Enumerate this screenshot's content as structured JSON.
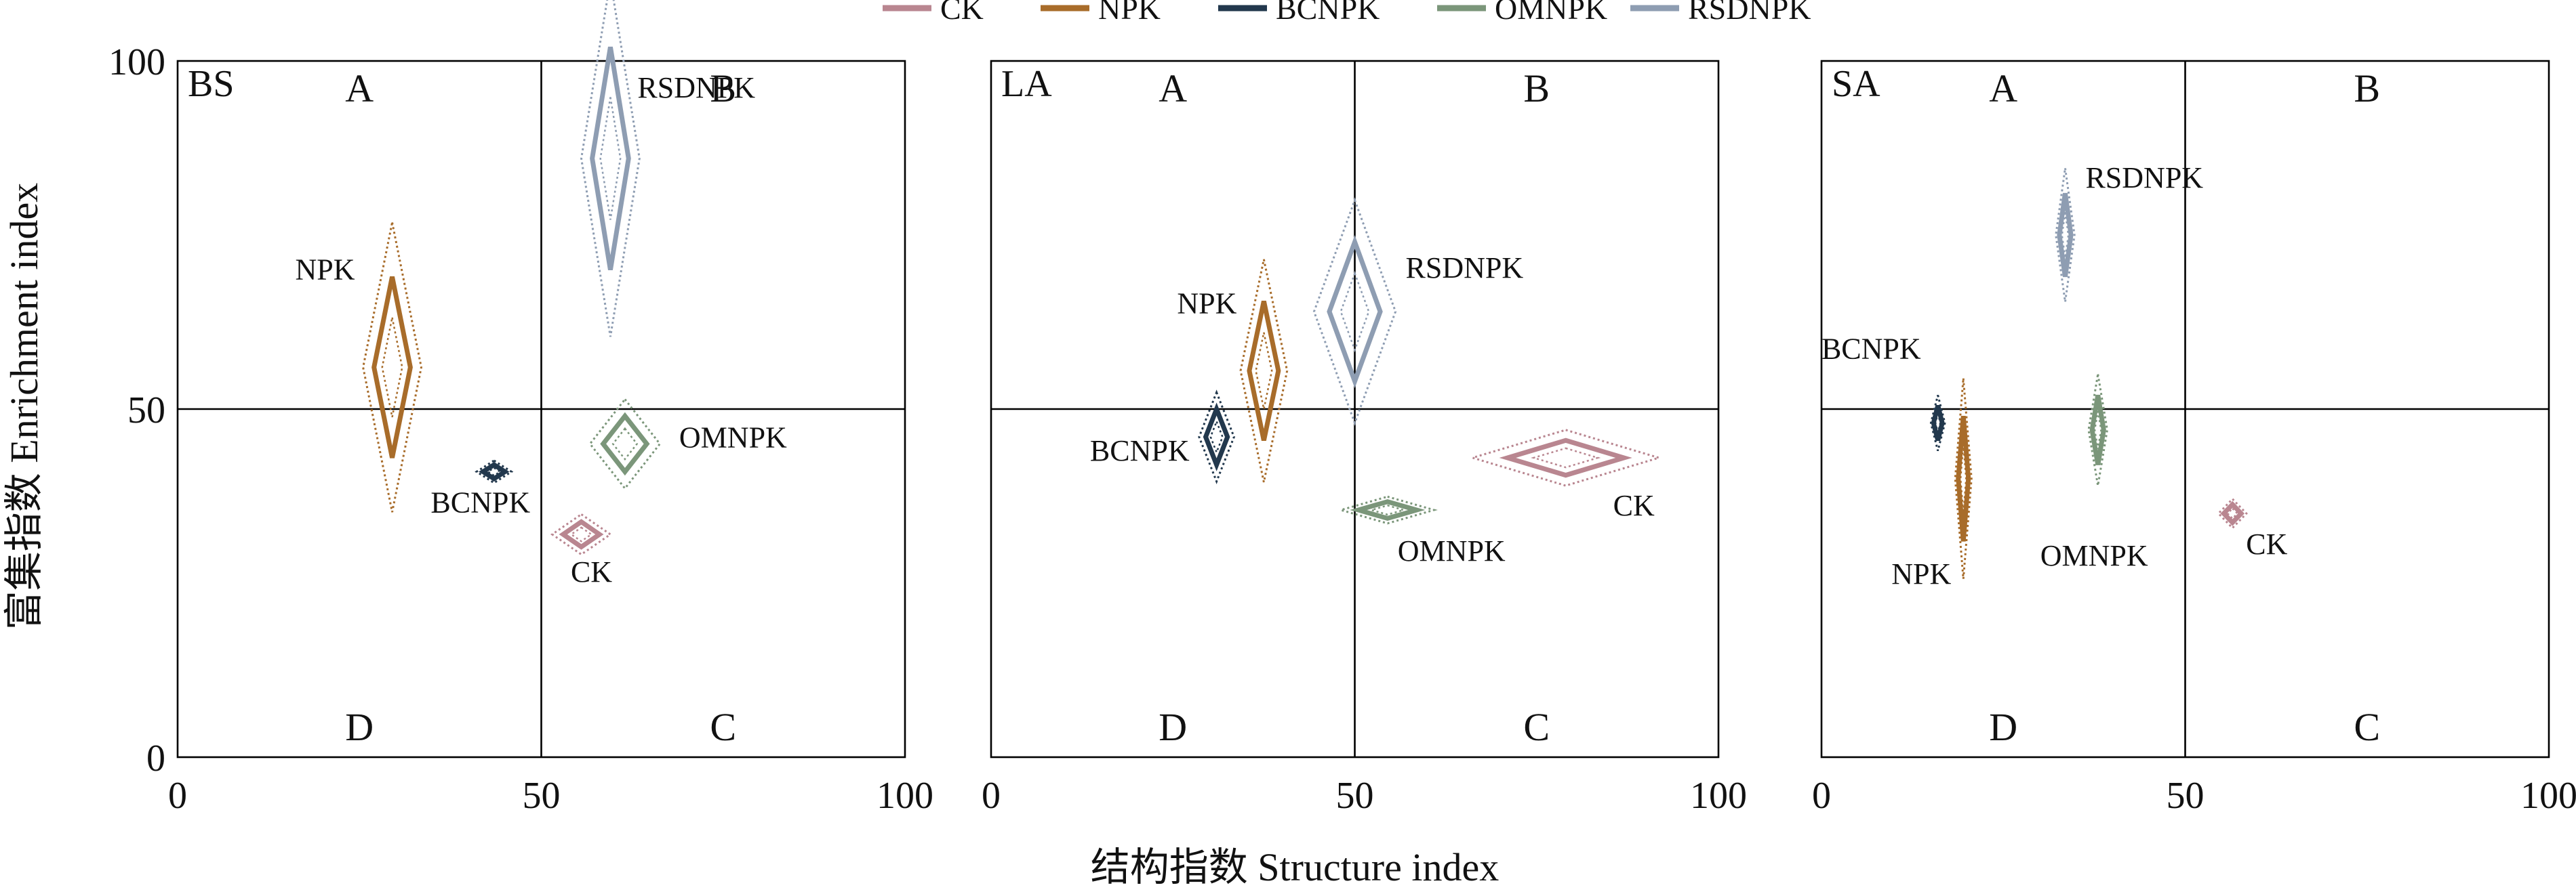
{
  "chart_data": {
    "type": "scatter",
    "xlabel": "结构指数 Structure index",
    "ylabel": "富集指数 Enrichment index",
    "xlim": [
      0,
      100
    ],
    "ylim": [
      0,
      100
    ],
    "x_ticks": [
      "0",
      "50",
      "100"
    ],
    "y_ticks": [
      "0",
      "50",
      "100"
    ],
    "quadrant_labels": [
      "A",
      "B",
      "C",
      "D"
    ],
    "legend_position": "top-center",
    "series": [
      {
        "name": "CK",
        "color": "#b98690"
      },
      {
        "name": "NPK",
        "color": "#a86c2a"
      },
      {
        "name": "BCNPK",
        "color": "#22384d"
      },
      {
        "name": "OMNPK",
        "color": "#7b967a"
      },
      {
        "name": "RSDNPK",
        "color": "#8e9db2"
      }
    ],
    "panels": [
      {
        "name": "BS",
        "points": [
          {
            "series": "CK",
            "label": "CK",
            "x": 55.5,
            "y": 32,
            "sx": 2.5,
            "sy": 1.8
          },
          {
            "series": "NPK",
            "label": "NPK",
            "x": 29.5,
            "y": 56,
            "sx": 2.5,
            "sy": 13
          },
          {
            "series": "BCNPK",
            "label": "BCNPK",
            "x": 43.5,
            "y": 41,
            "sx": 1.5,
            "sy": 1.0
          },
          {
            "series": "OMNPK",
            "label": "OMNPK",
            "x": 61.5,
            "y": 45,
            "sx": 3.0,
            "sy": 4.0
          },
          {
            "series": "RSDNPK",
            "label": "RSDNPK",
            "x": 59.5,
            "y": 86,
            "sx": 2.5,
            "sy": 16
          }
        ]
      },
      {
        "name": "LA",
        "points": [
          {
            "series": "CK",
            "label": "CK",
            "x": 79,
            "y": 43,
            "sx": 8.0,
            "sy": 2.5
          },
          {
            "series": "NPK",
            "label": "NPK",
            "x": 37.5,
            "y": 55.5,
            "sx": 2.0,
            "sy": 10
          },
          {
            "series": "BCNPK",
            "label": "BCNPK",
            "x": 31,
            "y": 46,
            "sx": 1.5,
            "sy": 4.0
          },
          {
            "series": "OMNPK",
            "label": "OMNPK",
            "x": 54.5,
            "y": 35.5,
            "sx": 4.0,
            "sy": 1.2
          },
          {
            "series": "RSDNPK",
            "label": "RSDNPK",
            "x": 50,
            "y": 64,
            "sx": 3.5,
            "sy": 10
          }
        ]
      },
      {
        "name": "SA",
        "points": [
          {
            "series": "CK",
            "label": "CK",
            "x": 56.5,
            "y": 35,
            "sx": 1.2,
            "sy": 1.3
          },
          {
            "series": "NPK",
            "label": "NPK",
            "x": 19.5,
            "y": 40,
            "sx": 0.7,
            "sy": 9.0
          },
          {
            "series": "BCNPK",
            "label": "BCNPK",
            "x": 16,
            "y": 48,
            "sx": 0.6,
            "sy": 2.5
          },
          {
            "series": "OMNPK",
            "label": "OMNPK",
            "x": 38,
            "y": 47,
            "sx": 0.8,
            "sy": 5.0
          },
          {
            "series": "RSDNPK",
            "label": "RSDNPK",
            "x": 33.5,
            "y": 75,
            "sx": 0.8,
            "sy": 6.0
          }
        ]
      }
    ]
  }
}
